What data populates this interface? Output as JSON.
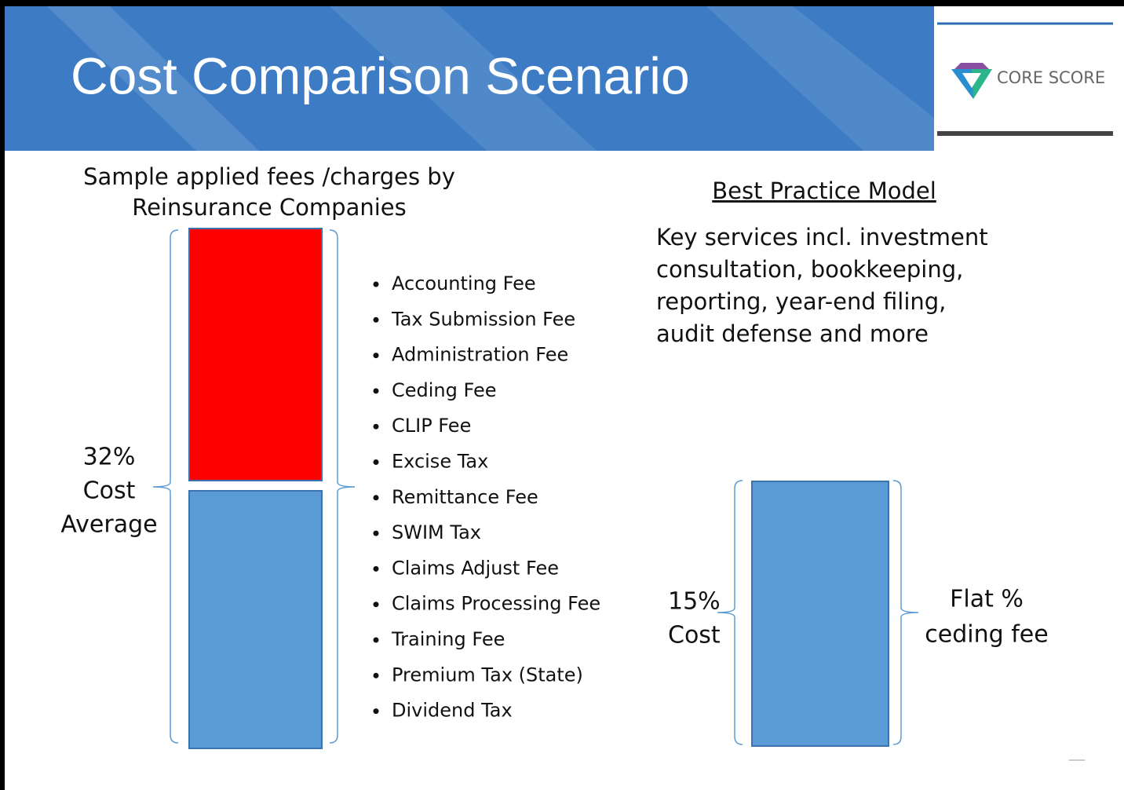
{
  "header": {
    "title": "Cost Comparison Scenario"
  },
  "logo": {
    "text": "CORE SCORE"
  },
  "left": {
    "heading": [
      "Sample applied fees /charges by",
      "Reinsurance Companies"
    ],
    "label": [
      "32%",
      "Cost",
      "Average"
    ],
    "fees": [
      "Accounting Fee",
      "Tax Submission Fee",
      "Administration Fee",
      "Ceding Fee",
      "CLIP Fee",
      "Excise Tax",
      "Remittance Fee",
      "SWIM Tax",
      "Claims Adjust Fee",
      "Claims Processing Fee",
      "Training Fee",
      "Premium Tax (State)",
      "Dividend Tax"
    ]
  },
  "right": {
    "heading": "Best Practice Model",
    "description": [
      "Key services incl. investment",
      "consultation, bookkeeping,",
      "reporting, year-end filing,",
      "audit defense and more"
    ],
    "left_label": [
      "15%",
      "Cost"
    ],
    "right_label": [
      "Flat %",
      "ceding fee"
    ]
  }
}
